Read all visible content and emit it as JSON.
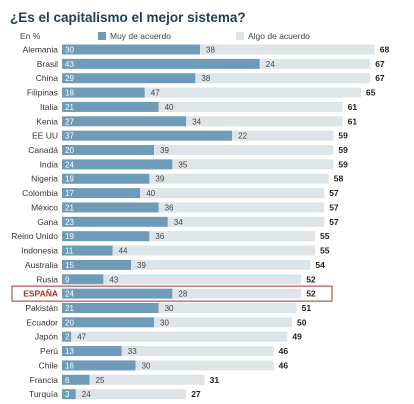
{
  "chart_data": {
    "type": "bar",
    "stacked": true,
    "orientation": "horizontal",
    "title": "¿Es el capitalismo el mejor sistema?",
    "unit_label": "En %",
    "legend": [
      "Muy de acuerdo",
      "Algo de acuerdo"
    ],
    "categories": [
      "Alemania",
      "Brasil",
      "China",
      "Filipinas",
      "Italia",
      "Kenia",
      "EE UU",
      "Canadá",
      "India",
      "Nigeria",
      "Colombia",
      "México",
      "Gana",
      "Reino Unido",
      "Indonesia",
      "Australia",
      "Rusia",
      "ESPAÑA",
      "Pakistán",
      "Ecuador",
      "Japón",
      "Perú",
      "Chile",
      "Francia",
      "Turquía"
    ],
    "series": [
      {
        "name": "Muy de acuerdo",
        "values": [
          30,
          43,
          29,
          18,
          21,
          27,
          37,
          20,
          24,
          19,
          17,
          21,
          23,
          19,
          11,
          15,
          9,
          24,
          21,
          20,
          2,
          13,
          16,
          6,
          3
        ]
      },
      {
        "name": "Algo de acuerdo",
        "values": [
          38,
          24,
          38,
          47,
          40,
          34,
          22,
          39,
          35,
          39,
          40,
          36,
          34,
          36,
          44,
          39,
          43,
          28,
          30,
          30,
          47,
          33,
          30,
          25,
          24
        ]
      }
    ],
    "totals": [
      68,
      67,
      67,
      65,
      61,
      61,
      59,
      59,
      59,
      58,
      57,
      57,
      57,
      55,
      55,
      54,
      52,
      52,
      51,
      50,
      49,
      46,
      46,
      31,
      27
    ],
    "highlight": "ESPAÑA",
    "colors": {
      "strong": "#6e9bb7",
      "some": "#dde5ea",
      "title": "#1f3e5a",
      "highlight": "#b22a2a"
    }
  }
}
